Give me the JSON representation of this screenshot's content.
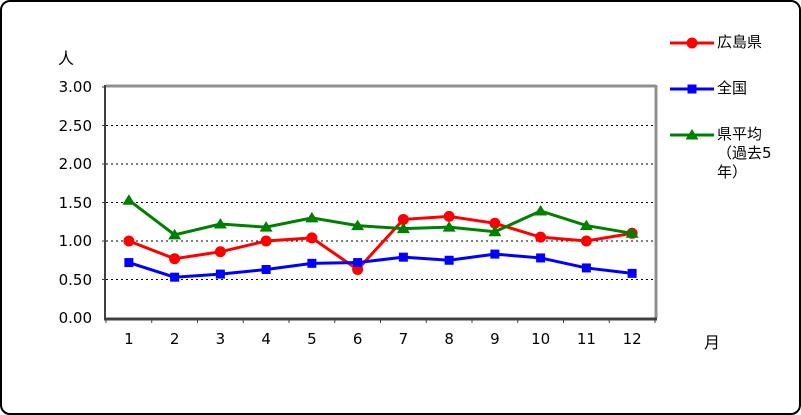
{
  "page": {
    "background": "#FFFFFF",
    "border_color": "#000000"
  },
  "chart_data": {
    "type": "line",
    "title": "",
    "ylabel_unit": "人",
    "xlabel_unit": "月",
    "categories": [
      "1",
      "2",
      "3",
      "4",
      "5",
      "6",
      "7",
      "8",
      "9",
      "10",
      "11",
      "12"
    ],
    "series": [
      {
        "name": "広島県",
        "color": "#FF0000",
        "marker": "circle",
        "values": [
          1.0,
          0.77,
          0.86,
          1.0,
          1.04,
          0.63,
          1.28,
          1.32,
          1.23,
          1.05,
          1.0,
          1.1
        ]
      },
      {
        "name": "全国",
        "color": "#0000FF",
        "marker": "square",
        "values": [
          0.72,
          0.53,
          0.57,
          0.63,
          0.71,
          0.72,
          0.79,
          0.75,
          0.83,
          0.78,
          0.65,
          0.58
        ]
      },
      {
        "name": "県平均（過去5年）",
        "color": "#008000",
        "marker": "triangle",
        "values": [
          1.53,
          1.08,
          1.22,
          1.18,
          1.3,
          1.2,
          1.16,
          1.18,
          1.12,
          1.39,
          1.2,
          1.1
        ]
      }
    ],
    "ylim": [
      0,
      3
    ],
    "y_ticks": [
      {
        "value": 3.0,
        "label": "3.00"
      },
      {
        "value": 2.5,
        "label": "2.50"
      },
      {
        "value": 2.0,
        "label": "2.00"
      },
      {
        "value": 1.5,
        "label": "1.50"
      },
      {
        "value": 1.0,
        "label": "1.00"
      },
      {
        "value": 0.5,
        "label": "0.50"
      },
      {
        "value": 0.0,
        "label": "0.00"
      }
    ],
    "grid": "horizontal-dashed",
    "legend_position": "right",
    "axis_colors": {
      "shadow": "#909090",
      "axis": "#404040",
      "grid": "#000000"
    }
  }
}
